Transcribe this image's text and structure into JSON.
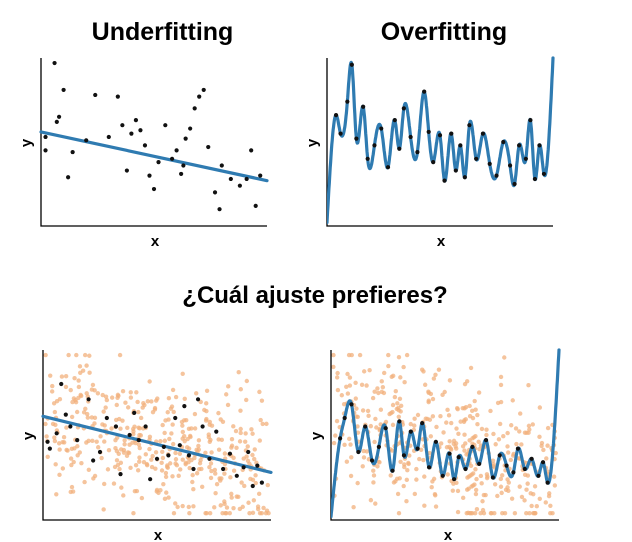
{
  "titles": {
    "underfitting": "Underfitting",
    "overfitting": "Overfitting",
    "question": "¿Cuál ajuste prefieres?"
  },
  "colors": {
    "fit_line": "#2f7bb1",
    "train_points": "#111111",
    "test_points": "#f2b07c"
  },
  "chart_data": [
    {
      "id": "under-train",
      "type": "scatter",
      "title": "Underfitting",
      "xlabel": "x",
      "ylabel": "y",
      "xlim": [
        0,
        1
      ],
      "ylim": [
        0,
        1
      ],
      "fit": "linear",
      "line": {
        "x": [
          0,
          1
        ],
        "y": [
          0.56,
          0.27
        ]
      },
      "points": [
        [
          0.02,
          0.45
        ],
        [
          0.02,
          0.53
        ],
        [
          0.06,
          0.97
        ],
        [
          0.07,
          0.62
        ],
        [
          0.08,
          0.65
        ],
        [
          0.1,
          0.81
        ],
        [
          0.12,
          0.29
        ],
        [
          0.14,
          0.44
        ],
        [
          0.2,
          0.51
        ],
        [
          0.24,
          0.78
        ],
        [
          0.3,
          0.53
        ],
        [
          0.34,
          0.77
        ],
        [
          0.36,
          0.6
        ],
        [
          0.38,
          0.33
        ],
        [
          0.4,
          0.55
        ],
        [
          0.42,
          0.63
        ],
        [
          0.44,
          0.57
        ],
        [
          0.46,
          0.48
        ],
        [
          0.48,
          0.3
        ],
        [
          0.5,
          0.22
        ],
        [
          0.52,
          0.38
        ],
        [
          0.55,
          0.6
        ],
        [
          0.58,
          0.4
        ],
        [
          0.6,
          0.45
        ],
        [
          0.62,
          0.31
        ],
        [
          0.63,
          0.36
        ],
        [
          0.64,
          0.52
        ],
        [
          0.66,
          0.58
        ],
        [
          0.68,
          0.7
        ],
        [
          0.7,
          0.77
        ],
        [
          0.72,
          0.81
        ],
        [
          0.74,
          0.47
        ],
        [
          0.77,
          0.2
        ],
        [
          0.79,
          0.1
        ],
        [
          0.8,
          0.36
        ],
        [
          0.84,
          0.28
        ],
        [
          0.88,
          0.24
        ],
        [
          0.91,
          0.28
        ],
        [
          0.93,
          0.45
        ],
        [
          0.95,
          0.12
        ],
        [
          0.97,
          0.3
        ]
      ]
    },
    {
      "id": "over-train",
      "type": "scatter",
      "title": "Overfitting",
      "xlabel": "x",
      "ylabel": "y",
      "xlim": [
        0,
        1
      ],
      "ylim": [
        0,
        1
      ],
      "fit": "high-degree polynomial through every point",
      "points": [
        [
          0.04,
          0.66
        ],
        [
          0.06,
          0.55
        ],
        [
          0.09,
          0.74
        ],
        [
          0.11,
          0.96
        ],
        [
          0.13,
          0.52
        ],
        [
          0.16,
          0.71
        ],
        [
          0.18,
          0.4
        ],
        [
          0.21,
          0.48
        ],
        [
          0.24,
          0.58
        ],
        [
          0.27,
          0.35
        ],
        [
          0.3,
          0.63
        ],
        [
          0.32,
          0.46
        ],
        [
          0.34,
          0.7
        ],
        [
          0.37,
          0.53
        ],
        [
          0.4,
          0.44
        ],
        [
          0.43,
          0.8
        ],
        [
          0.45,
          0.56
        ],
        [
          0.47,
          0.38
        ],
        [
          0.5,
          0.54
        ],
        [
          0.52,
          0.27
        ],
        [
          0.55,
          0.55
        ],
        [
          0.57,
          0.33
        ],
        [
          0.59,
          0.48
        ],
        [
          0.61,
          0.29
        ],
        [
          0.63,
          0.6
        ],
        [
          0.66,
          0.4
        ],
        [
          0.69,
          0.55
        ],
        [
          0.72,
          0.37
        ],
        [
          0.75,
          0.3
        ],
        [
          0.78,
          0.5
        ],
        [
          0.81,
          0.36
        ],
        [
          0.83,
          0.25
        ],
        [
          0.85,
          0.48
        ],
        [
          0.88,
          0.4
        ],
        [
          0.9,
          0.63
        ],
        [
          0.92,
          0.28
        ],
        [
          0.94,
          0.48
        ],
        [
          0.96,
          0.31
        ]
      ]
    },
    {
      "id": "under-test",
      "type": "scatter",
      "xlabel": "x",
      "ylabel": "y",
      "xlim": [
        0,
        1
      ],
      "ylim": [
        0,
        1
      ],
      "fit": "linear",
      "line": {
        "x": [
          0,
          1
        ],
        "y": [
          0.61,
          0.28
        ]
      },
      "train_points": [
        [
          0.02,
          0.46
        ],
        [
          0.03,
          0.42
        ],
        [
          0.06,
          0.51
        ],
        [
          0.08,
          0.8
        ],
        [
          0.1,
          0.62
        ],
        [
          0.12,
          0.55
        ],
        [
          0.15,
          0.47
        ],
        [
          0.2,
          0.71
        ],
        [
          0.22,
          0.35
        ],
        [
          0.25,
          0.4
        ],
        [
          0.28,
          0.6
        ],
        [
          0.32,
          0.55
        ],
        [
          0.34,
          0.27
        ],
        [
          0.38,
          0.5
        ],
        [
          0.4,
          0.63
        ],
        [
          0.42,
          0.47
        ],
        [
          0.45,
          0.55
        ],
        [
          0.47,
          0.24
        ],
        [
          0.5,
          0.36
        ],
        [
          0.53,
          0.43
        ],
        [
          0.55,
          0.38
        ],
        [
          0.58,
          0.6
        ],
        [
          0.6,
          0.44
        ],
        [
          0.62,
          0.67
        ],
        [
          0.64,
          0.38
        ],
        [
          0.66,
          0.3
        ],
        [
          0.68,
          0.71
        ],
        [
          0.7,
          0.55
        ],
        [
          0.73,
          0.36
        ],
        [
          0.76,
          0.52
        ],
        [
          0.79,
          0.3
        ],
        [
          0.82,
          0.39
        ],
        [
          0.85,
          0.26
        ],
        [
          0.88,
          0.31
        ],
        [
          0.9,
          0.4
        ],
        [
          0.92,
          0.2
        ],
        [
          0.94,
          0.32
        ],
        [
          0.96,
          0.22
        ]
      ],
      "test_points_count": 440
    },
    {
      "id": "over-test",
      "type": "scatter",
      "xlabel": "x",
      "ylabel": "y",
      "xlim": [
        0,
        1
      ],
      "ylim": [
        0,
        1
      ],
      "fit": "high-degree polynomial through every training point",
      "train_points": [
        [
          0.04,
          0.48
        ],
        [
          0.06,
          0.6
        ],
        [
          0.09,
          0.68
        ],
        [
          0.12,
          0.4
        ],
        [
          0.15,
          0.55
        ],
        [
          0.18,
          0.35
        ],
        [
          0.21,
          0.43
        ],
        [
          0.24,
          0.54
        ],
        [
          0.27,
          0.29
        ],
        [
          0.3,
          0.58
        ],
        [
          0.32,
          0.38
        ],
        [
          0.35,
          0.52
        ],
        [
          0.38,
          0.42
        ],
        [
          0.4,
          0.57
        ],
        [
          0.43,
          0.31
        ],
        [
          0.46,
          0.46
        ],
        [
          0.49,
          0.26
        ],
        [
          0.52,
          0.39
        ],
        [
          0.54,
          0.24
        ],
        [
          0.56,
          0.37
        ],
        [
          0.59,
          0.3
        ],
        [
          0.62,
          0.43
        ],
        [
          0.65,
          0.33
        ],
        [
          0.68,
          0.47
        ],
        [
          0.71,
          0.25
        ],
        [
          0.74,
          0.38
        ],
        [
          0.77,
          0.32
        ],
        [
          0.8,
          0.28
        ],
        [
          0.82,
          0.42
        ],
        [
          0.85,
          0.3
        ],
        [
          0.88,
          0.36
        ],
        [
          0.91,
          0.26
        ],
        [
          0.93,
          0.34
        ],
        [
          0.95,
          0.22
        ]
      ],
      "test_points_count": 440
    }
  ]
}
